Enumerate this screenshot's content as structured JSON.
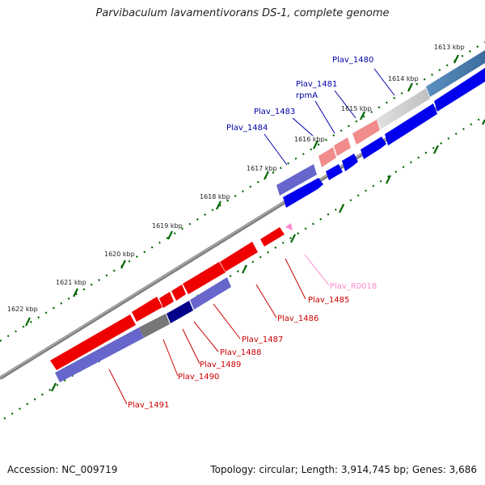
{
  "title": "Parvibaculum lavamentivorans DS-1, complete genome",
  "footer": {
    "accession": "Accession: NC_009719",
    "stats": "Topology: circular; Length: 3,914,745 bp; Genes: 3,686"
  },
  "colors": {
    "forward_gene": "#0000ee",
    "reverse_gene": "#ee0000",
    "rna": "#ff88cc",
    "backbone": "#888888",
    "tick": "#006600",
    "label_blue": "#0000aa",
    "label_red": "#cc0000"
  },
  "tick_labels": [
    "1613 kbp",
    "1614 kbp",
    "1615 kbp",
    "1616 kbp",
    "1617 kbp",
    "1618 kbp",
    "1619 kbp",
    "1620 kbp",
    "1621 kbp",
    "1622 kbp"
  ],
  "gene_labels": [
    {
      "text": "Plav_1480",
      "color": "blue"
    },
    {
      "text": "Plav_1481",
      "color": "blue"
    },
    {
      "text": "rpmA",
      "color": "blue"
    },
    {
      "text": "Plav_1483",
      "color": "blue"
    },
    {
      "text": "Plav_1484",
      "color": "blue"
    },
    {
      "text": "Plav_R0018",
      "color": "pink"
    },
    {
      "text": "Plav_1485",
      "color": "red"
    },
    {
      "text": "Plav_1486",
      "color": "red"
    },
    {
      "text": "Plav_1487",
      "color": "red"
    },
    {
      "text": "Plav_1488",
      "color": "red"
    },
    {
      "text": "Plav_1489",
      "color": "red"
    },
    {
      "text": "Plav_1490",
      "color": "red"
    },
    {
      "text": "Plav_1491",
      "color": "red"
    }
  ]
}
